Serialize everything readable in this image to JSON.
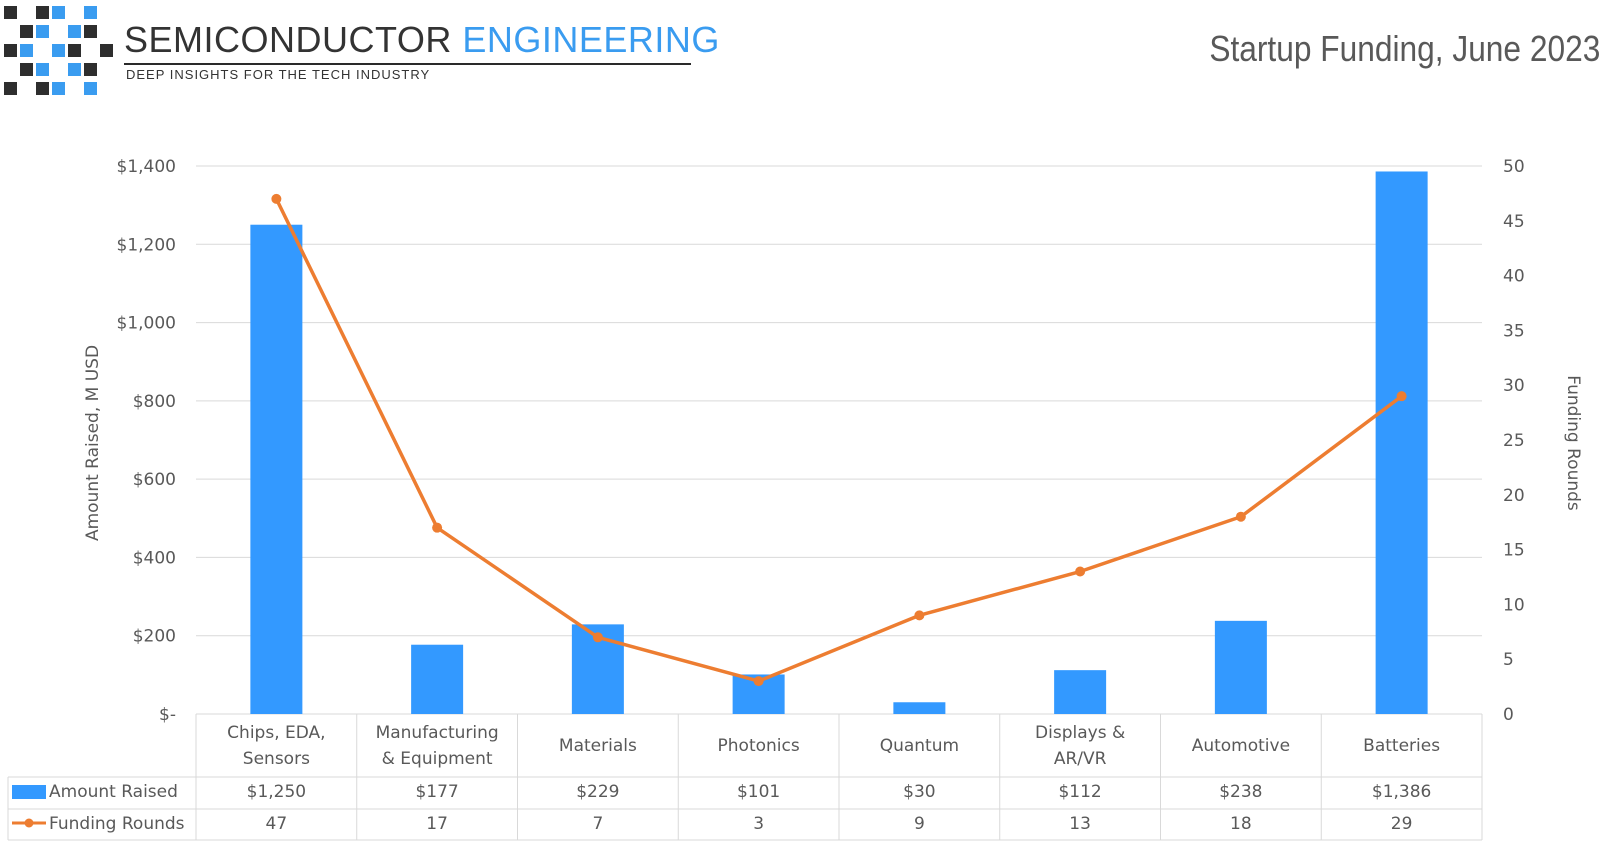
{
  "header": {
    "brand_word1": "SEMICONDUCTOR",
    "brand_word2": "ENGINEERING",
    "tagline": "DEEP INSIGHTS FOR THE TECH INDUSTRY",
    "title": "Startup Funding, June 2023"
  },
  "colors": {
    "bar": "#3399ff",
    "line": "#ed7d31",
    "logo_blue": "#3a9cf0",
    "logo_dark": "#2e2e2e"
  },
  "chart_data": {
    "type": "bar",
    "categories": [
      [
        "Chips, EDA,",
        "Sensors"
      ],
      [
        "Manufacturing",
        "& Equipment"
      ],
      [
        "Materials"
      ],
      [
        "Photonics"
      ],
      [
        "Quantum"
      ],
      [
        "Displays &",
        "AR/VR"
      ],
      [
        "Automotive"
      ],
      [
        "Batteries"
      ]
    ],
    "series": [
      {
        "name": "Amount Raised",
        "type": "bar",
        "axis": "left",
        "values": [
          1250,
          177,
          229,
          101,
          30,
          112,
          238,
          1386
        ],
        "labels": [
          "$1,250",
          "$177",
          "$229",
          "$101",
          "$30",
          "$112",
          "$238",
          "$1,386"
        ]
      },
      {
        "name": "Funding Rounds",
        "type": "line",
        "axis": "right",
        "values": [
          47,
          17,
          7,
          3,
          9,
          13,
          18,
          29
        ]
      }
    ],
    "ylabel": "Amount Raised, M USD",
    "y2label": "Funding Rounds",
    "ylim": [
      0,
      1400
    ],
    "y2lim": [
      0,
      50
    ],
    "yticks": [
      "$-",
      "$200",
      "$400",
      "$600",
      "$800",
      "$1,000",
      "$1,200",
      "$1,400"
    ],
    "y2ticks": [
      "0",
      "5",
      "10",
      "15",
      "20",
      "25",
      "30",
      "35",
      "40",
      "45",
      "50"
    ],
    "grid": true,
    "legend": "data-table"
  }
}
